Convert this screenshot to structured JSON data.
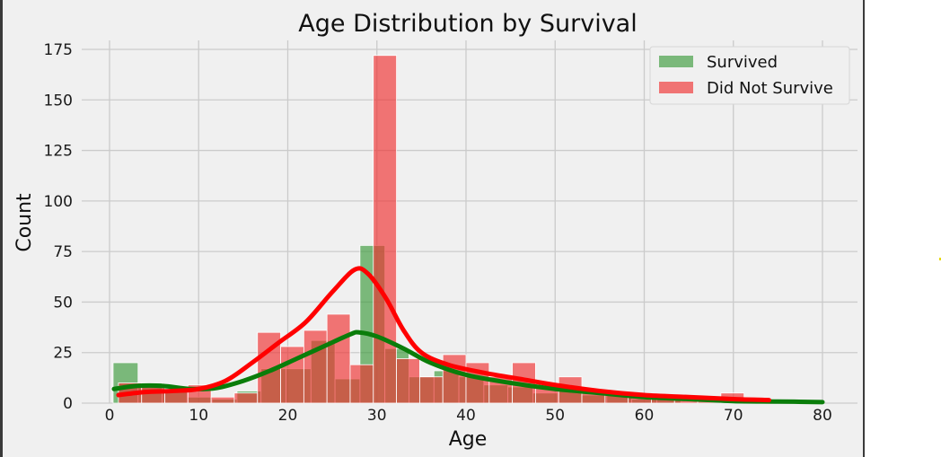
{
  "chart_data": {
    "type": "bar",
    "title": "Age Distribution by Survival",
    "xlabel": "Age",
    "ylabel": "Count",
    "xlim": [
      0,
      80
    ],
    "ylim": [
      0,
      175
    ],
    "xticks": [
      "0",
      "10",
      "20",
      "30",
      "40",
      "50",
      "60",
      "70",
      "80"
    ],
    "yticks": [
      "0",
      "25",
      "50",
      "75",
      "100",
      "125",
      "150",
      "175"
    ],
    "grid": true,
    "legend_position": "top-right",
    "series": [
      {
        "name": "Survived",
        "kind": "histogram",
        "color": "#3a9a3a",
        "bins": [
          [
            0.4,
            3.2,
            20
          ],
          [
            3.2,
            5.9,
            10
          ],
          [
            5.9,
            8.7,
            7
          ],
          [
            8.7,
            11.5,
            3
          ],
          [
            11.5,
            14.3,
            2
          ],
          [
            14.3,
            17.0,
            6
          ],
          [
            17.0,
            19.8,
            17
          ],
          [
            19.8,
            22.6,
            17
          ],
          [
            22.6,
            25.3,
            31
          ],
          [
            25.3,
            28.1,
            12
          ],
          [
            28.1,
            30.9,
            78
          ],
          [
            30.9,
            33.6,
            27
          ],
          [
            33.6,
            36.4,
            13
          ],
          [
            36.4,
            39.2,
            16
          ],
          [
            39.2,
            42.0,
            13
          ],
          [
            42.0,
            44.7,
            9
          ],
          [
            44.7,
            47.5,
            8
          ],
          [
            47.5,
            50.3,
            5
          ],
          [
            50.3,
            53.0,
            7
          ],
          [
            53.0,
            55.8,
            4
          ],
          [
            55.8,
            58.6,
            4
          ],
          [
            58.6,
            61.4,
            2
          ],
          [
            61.4,
            64.1,
            2
          ],
          [
            64.1,
            66.9,
            0
          ],
          [
            66.9,
            69.7,
            0
          ],
          [
            69.7,
            72.4,
            0
          ],
          [
            72.4,
            75.2,
            0
          ],
          [
            75.2,
            78.0,
            1
          ],
          [
            78.0,
            80.0,
            1
          ]
        ],
        "kde": [
          [
            0.5,
            7
          ],
          [
            3,
            8.5
          ],
          [
            6,
            8.5
          ],
          [
            9,
            7
          ],
          [
            12,
            7.5
          ],
          [
            15,
            11
          ],
          [
            18,
            16
          ],
          [
            21,
            22
          ],
          [
            24,
            28
          ],
          [
            27,
            34
          ],
          [
            28,
            35
          ],
          [
            30,
            33
          ],
          [
            33,
            27
          ],
          [
            36,
            20
          ],
          [
            40,
            14
          ],
          [
            45,
            10
          ],
          [
            50,
            7
          ],
          [
            55,
            5
          ],
          [
            60,
            3
          ],
          [
            65,
            2
          ],
          [
            70,
            1
          ],
          [
            75,
            0.8
          ],
          [
            80,
            0.5
          ]
        ]
      },
      {
        "name": "Did Not Survive",
        "kind": "histogram",
        "color": "#f03030",
        "bins": [
          [
            1.0,
            3.6,
            10
          ],
          [
            3.6,
            6.2,
            8
          ],
          [
            6.2,
            8.8,
            6
          ],
          [
            8.8,
            11.4,
            9
          ],
          [
            11.4,
            14.0,
            3
          ],
          [
            14.0,
            16.6,
            5
          ],
          [
            16.6,
            19.2,
            35
          ],
          [
            19.2,
            21.8,
            28
          ],
          [
            21.8,
            24.4,
            36
          ],
          [
            24.4,
            27.0,
            44
          ],
          [
            27.0,
            29.6,
            19
          ],
          [
            29.6,
            32.2,
            172
          ],
          [
            32.2,
            34.8,
            22
          ],
          [
            34.8,
            37.4,
            13
          ],
          [
            37.4,
            40.0,
            24
          ],
          [
            40.0,
            42.6,
            20
          ],
          [
            42.6,
            45.2,
            13
          ],
          [
            45.2,
            47.8,
            20
          ],
          [
            47.8,
            50.4,
            8
          ],
          [
            50.4,
            53.0,
            13
          ],
          [
            53.0,
            55.6,
            6
          ],
          [
            55.6,
            58.2,
            4
          ],
          [
            58.2,
            60.8,
            4
          ],
          [
            60.8,
            63.4,
            3
          ],
          [
            63.4,
            66.0,
            2
          ],
          [
            66.0,
            68.6,
            1
          ],
          [
            68.6,
            71.2,
            5
          ],
          [
            71.2,
            74.0,
            2
          ]
        ],
        "kde": [
          [
            1,
            4
          ],
          [
            4,
            5.5
          ],
          [
            7,
            6
          ],
          [
            10,
            7
          ],
          [
            13,
            11
          ],
          [
            16,
            20
          ],
          [
            19,
            30
          ],
          [
            22,
            40
          ],
          [
            25,
            55
          ],
          [
            27.5,
            66
          ],
          [
            29,
            64
          ],
          [
            31,
            52
          ],
          [
            33,
            36
          ],
          [
            35,
            25
          ],
          [
            38,
            19
          ],
          [
            42,
            15
          ],
          [
            46,
            12
          ],
          [
            50,
            9
          ],
          [
            55,
            6
          ],
          [
            60,
            4
          ],
          [
            65,
            3
          ],
          [
            70,
            2
          ],
          [
            74,
            1.5
          ]
        ]
      }
    ]
  }
}
